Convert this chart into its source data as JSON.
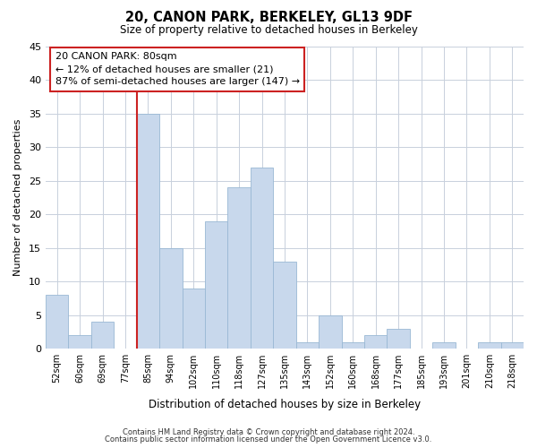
{
  "title": "20, CANON PARK, BERKELEY, GL13 9DF",
  "subtitle": "Size of property relative to detached houses in Berkeley",
  "xlabel": "Distribution of detached houses by size in Berkeley",
  "ylabel": "Number of detached properties",
  "bins": [
    "52sqm",
    "60sqm",
    "69sqm",
    "77sqm",
    "85sqm",
    "94sqm",
    "102sqm",
    "110sqm",
    "118sqm",
    "127sqm",
    "135sqm",
    "143sqm",
    "152sqm",
    "160sqm",
    "168sqm",
    "177sqm",
    "185sqm",
    "193sqm",
    "201sqm",
    "210sqm",
    "218sqm"
  ],
  "values": [
    8,
    2,
    4,
    0,
    35,
    15,
    9,
    19,
    24,
    27,
    13,
    1,
    5,
    1,
    2,
    3,
    0,
    1,
    0,
    1,
    1
  ],
  "bar_color": "#c8d8ec",
  "bar_edge_color": "#9ab8d4",
  "vline_x_index": 4,
  "vline_color": "#cc2222",
  "annotation_text": "20 CANON PARK: 80sqm\n← 12% of detached houses are smaller (21)\n87% of semi-detached houses are larger (147) →",
  "annotation_box_color": "white",
  "annotation_box_edge": "#cc2222",
  "ylim": [
    0,
    45
  ],
  "yticks": [
    0,
    5,
    10,
    15,
    20,
    25,
    30,
    35,
    40,
    45
  ],
  "footer1": "Contains HM Land Registry data © Crown copyright and database right 2024.",
  "footer2": "Contains public sector information licensed under the Open Government Licence v3.0.",
  "bg_color": "#ffffff",
  "plot_bg_color": "#ffffff"
}
